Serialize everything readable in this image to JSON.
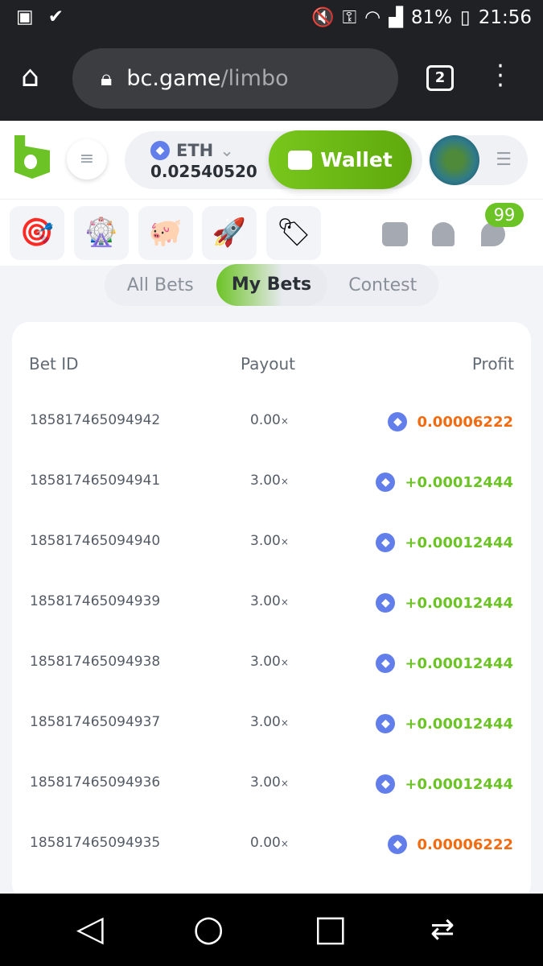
{
  "status_bar": {
    "battery": "81%",
    "time": "21:56"
  },
  "browser": {
    "domain": "bc.game",
    "path": "/limbo",
    "tab_count": "2"
  },
  "header": {
    "currency": "ETH",
    "balance": "0.02540520",
    "wallet_label": "Wallet"
  },
  "quick_icons": [
    "spin-target-icon",
    "wheel-icon",
    "piggy-bank-icon",
    "rocket-icon",
    "price-tag-icon"
  ],
  "notifications": {
    "chat_badge": "99"
  },
  "tabs": {
    "items": [
      "All Bets",
      "My Bets",
      "Contest"
    ],
    "active": "My Bets"
  },
  "table": {
    "headers": [
      "Bet ID",
      "Payout",
      "Profit"
    ],
    "rows": [
      {
        "id": "185817465094942",
        "payout": "0.00",
        "profit": "0.00006222",
        "status": "loss"
      },
      {
        "id": "185817465094941",
        "payout": "3.00",
        "profit": "+0.00012444",
        "status": "win"
      },
      {
        "id": "185817465094940",
        "payout": "3.00",
        "profit": "+0.00012444",
        "status": "win"
      },
      {
        "id": "185817465094939",
        "payout": "3.00",
        "profit": "+0.00012444",
        "status": "win"
      },
      {
        "id": "185817465094938",
        "payout": "3.00",
        "profit": "+0.00012444",
        "status": "win"
      },
      {
        "id": "185817465094937",
        "payout": "3.00",
        "profit": "+0.00012444",
        "status": "win"
      },
      {
        "id": "185817465094936",
        "payout": "3.00",
        "profit": "+0.00012444",
        "status": "win"
      },
      {
        "id": "185817465094935",
        "payout": "0.00",
        "profit": "0.00006222",
        "status": "loss"
      }
    ],
    "multiplier_suffix": "×"
  },
  "colors": {
    "accent": "#6cc325",
    "win": "#6cc325",
    "loss": "#f26b10",
    "eth": "#627eea"
  }
}
